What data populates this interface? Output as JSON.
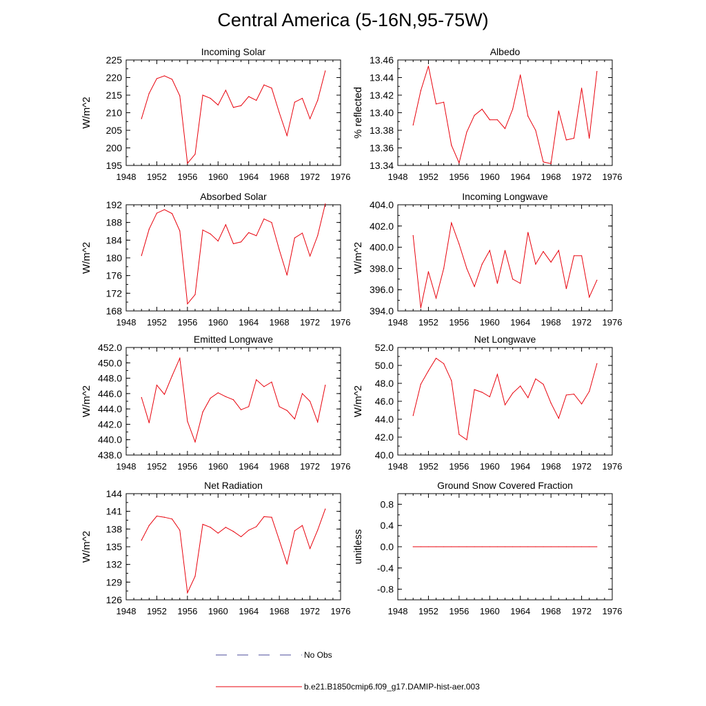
{
  "page": {
    "title": "Central America (5-16N,95-75W)"
  },
  "legend": [
    {
      "label": "No Obs",
      "color": "#4a4a9a",
      "style": "dashed"
    },
    {
      "label": "b.e21.B1850cmip6.f09_g17.DAMIP-hist-aer.003",
      "color": "#e8000b",
      "style": "solid"
    }
  ],
  "chart_data": [
    {
      "type": "line",
      "title": "Incoming Solar",
      "ylabel": "W/m^2",
      "xlim": [
        1948,
        1976
      ],
      "ylim": [
        195,
        225
      ],
      "xticks": [
        1948,
        1952,
        1956,
        1960,
        1964,
        1968,
        1972,
        1976
      ],
      "yticks": [
        195,
        200,
        205,
        210,
        215,
        220,
        225
      ],
      "ytick_labels": [
        "195",
        "200",
        "205",
        "210",
        "215",
        "220",
        "225"
      ],
      "series_color": "#e8000b",
      "x": [
        1950,
        1951,
        1952,
        1953,
        1954,
        1955,
        1956,
        1957,
        1958,
        1959,
        1960,
        1961,
        1962,
        1963,
        1964,
        1965,
        1966,
        1967,
        1968,
        1969,
        1970,
        1971,
        1972,
        1973,
        1974
      ],
      "values": [
        208.3,
        215.5,
        219.7,
        220.5,
        219.5,
        214.8,
        195.6,
        198.2,
        215.0,
        214.1,
        212.2,
        216.4,
        211.5,
        212.0,
        214.6,
        213.5,
        217.9,
        217.0,
        210.0,
        203.5,
        213.0,
        214.1,
        208.3,
        213.5,
        221.9
      ]
    },
    {
      "type": "line",
      "title": "Albedo",
      "ylabel": "% reflected",
      "xlim": [
        1948,
        1976
      ],
      "ylim": [
        13.34,
        13.46
      ],
      "xticks": [
        1948,
        1952,
        1956,
        1960,
        1964,
        1968,
        1972,
        1976
      ],
      "yticks": [
        13.34,
        13.36,
        13.38,
        13.4,
        13.42,
        13.44,
        13.46
      ],
      "ytick_labels": [
        "13.34",
        "13.36",
        "13.38",
        "13.40",
        "13.42",
        "13.44",
        "13.46"
      ],
      "series_color": "#e8000b",
      "x": [
        1950,
        1951,
        1952,
        1953,
        1954,
        1955,
        1956,
        1957,
        1958,
        1959,
        1960,
        1961,
        1962,
        1963,
        1964,
        1965,
        1966,
        1967,
        1968,
        1969,
        1970,
        1971,
        1972,
        1973,
        1974
      ],
      "values": [
        13.386,
        13.425,
        13.453,
        13.41,
        13.412,
        13.363,
        13.343,
        13.378,
        13.397,
        13.404,
        13.392,
        13.392,
        13.382,
        13.404,
        13.443,
        13.396,
        13.38,
        13.344,
        13.342,
        13.402,
        13.369,
        13.371,
        13.428,
        13.371,
        13.447
      ]
    },
    {
      "type": "line",
      "title": "Absorbed Solar",
      "ylabel": "W/m^2",
      "xlim": [
        1948,
        1976
      ],
      "ylim": [
        168,
        192
      ],
      "xticks": [
        1948,
        1952,
        1956,
        1960,
        1964,
        1968,
        1972,
        1976
      ],
      "yticks": [
        168,
        172,
        176,
        180,
        184,
        188,
        192
      ],
      "ytick_labels": [
        "168",
        "172",
        "176",
        "180",
        "184",
        "188",
        "192"
      ],
      "series_color": "#e8000b",
      "x": [
        1950,
        1951,
        1952,
        1953,
        1954,
        1955,
        1956,
        1957,
        1958,
        1959,
        1960,
        1961,
        1962,
        1963,
        1964,
        1965,
        1966,
        1967,
        1968,
        1969,
        1970,
        1971,
        1972,
        1973,
        1974
      ],
      "values": [
        180.5,
        186.5,
        190.1,
        190.9,
        190.0,
        186.1,
        169.6,
        171.7,
        186.3,
        185.4,
        183.8,
        187.5,
        183.2,
        183.6,
        185.7,
        185.0,
        188.8,
        188.0,
        181.8,
        176.1,
        184.5,
        185.6,
        180.4,
        185.0,
        192.2
      ]
    },
    {
      "type": "line",
      "title": "Incoming Longwave",
      "ylabel": "W/m^2",
      "xlim": [
        1948,
        1976
      ],
      "ylim": [
        394,
        404
      ],
      "xticks": [
        1948,
        1952,
        1956,
        1960,
        1964,
        1968,
        1972,
        1976
      ],
      "yticks": [
        394,
        396,
        398,
        400,
        402,
        404
      ],
      "ytick_labels": [
        "394.0",
        "396.0",
        "398.0",
        "400.0",
        "402.0",
        "404.0"
      ],
      "series_color": "#e8000b",
      "x": [
        1950,
        1951,
        1952,
        1953,
        1954,
        1955,
        1956,
        1957,
        1958,
        1959,
        1960,
        1961,
        1962,
        1963,
        1964,
        1965,
        1966,
        1967,
        1968,
        1969,
        1970,
        1971,
        1972,
        1973,
        1974
      ],
      "values": [
        401.1,
        394.3,
        397.7,
        395.2,
        398.0,
        402.3,
        400.3,
        398.0,
        396.3,
        398.4,
        399.7,
        396.6,
        399.7,
        397.0,
        396.6,
        401.4,
        398.4,
        399.6,
        398.6,
        399.7,
        396.1,
        399.2,
        399.2,
        395.3,
        396.9
      ]
    },
    {
      "type": "line",
      "title": "Emitted Longwave",
      "ylabel": "W/m^2",
      "xlim": [
        1948,
        1976
      ],
      "ylim": [
        438,
        452
      ],
      "xticks": [
        1948,
        1952,
        1956,
        1960,
        1964,
        1968,
        1972,
        1976
      ],
      "yticks": [
        438,
        440,
        442,
        444,
        446,
        448,
        450,
        452
      ],
      "ytick_labels": [
        "438.0",
        "440.0",
        "442.0",
        "444.0",
        "446.0",
        "448.0",
        "450.0",
        "452.0"
      ],
      "series_color": "#e8000b",
      "x": [
        1950,
        1951,
        1952,
        1953,
        1954,
        1955,
        1956,
        1957,
        1958,
        1959,
        1960,
        1961,
        1962,
        1963,
        1964,
        1965,
        1966,
        1967,
        1968,
        1969,
        1970,
        1971,
        1972,
        1973,
        1974
      ],
      "values": [
        445.5,
        442.2,
        447.1,
        445.9,
        448.3,
        450.6,
        442.4,
        439.7,
        443.6,
        445.4,
        446.1,
        445.6,
        445.2,
        443.9,
        444.3,
        447.8,
        446.9,
        447.5,
        444.3,
        443.8,
        442.7,
        446.0,
        445.0,
        442.3,
        447.1
      ]
    },
    {
      "type": "line",
      "title": "Net Longwave",
      "ylabel": "W/m^2",
      "xlim": [
        1948,
        1976
      ],
      "ylim": [
        40,
        52
      ],
      "xticks": [
        1948,
        1952,
        1956,
        1960,
        1964,
        1968,
        1972,
        1976
      ],
      "yticks": [
        40,
        42,
        44,
        46,
        48,
        50,
        52
      ],
      "ytick_labels": [
        "40.0",
        "42.0",
        "44.0",
        "46.0",
        "48.0",
        "50.0",
        "52.0"
      ],
      "series_color": "#e8000b",
      "x": [
        1950,
        1951,
        1952,
        1953,
        1954,
        1955,
        1956,
        1957,
        1958,
        1959,
        1960,
        1961,
        1962,
        1963,
        1964,
        1965,
        1966,
        1967,
        1968,
        1969,
        1970,
        1971,
        1972,
        1973,
        1974
      ],
      "values": [
        44.4,
        47.9,
        49.4,
        50.8,
        50.2,
        48.3,
        42.3,
        41.7,
        47.3,
        47.0,
        46.5,
        49.0,
        45.6,
        46.9,
        47.7,
        46.4,
        48.5,
        47.9,
        45.8,
        44.1,
        46.7,
        46.8,
        45.7,
        47.1,
        50.2
      ]
    },
    {
      "type": "line",
      "title": "Net Radiation",
      "ylabel": "W/m^2",
      "xlim": [
        1948,
        1976
      ],
      "ylim": [
        126,
        144
      ],
      "xticks": [
        1948,
        1952,
        1956,
        1960,
        1964,
        1968,
        1972,
        1976
      ],
      "yticks": [
        126,
        129,
        132,
        135,
        138,
        141,
        144
      ],
      "ytick_labels": [
        "126",
        "129",
        "132",
        "135",
        "138",
        "141",
        "144"
      ],
      "series_color": "#e8000b",
      "x": [
        1950,
        1951,
        1952,
        1953,
        1954,
        1955,
        1956,
        1957,
        1958,
        1959,
        1960,
        1961,
        1962,
        1963,
        1964,
        1965,
        1966,
        1967,
        1968,
        1969,
        1970,
        1971,
        1972,
        1973,
        1974
      ],
      "values": [
        136.1,
        138.6,
        140.2,
        140.0,
        139.7,
        137.8,
        127.2,
        130.0,
        138.8,
        138.3,
        137.3,
        138.3,
        137.6,
        136.7,
        137.8,
        138.4,
        140.1,
        140.0,
        136.1,
        132.1,
        137.7,
        138.6,
        134.7,
        137.8,
        141.4
      ]
    },
    {
      "type": "line",
      "title": "Ground Snow Covered Fraction",
      "ylabel": "unitless",
      "xlim": [
        1948,
        1976
      ],
      "ylim": [
        -1.0,
        1.0
      ],
      "xticks": [
        1948,
        1952,
        1956,
        1960,
        1964,
        1968,
        1972,
        1976
      ],
      "yticks": [
        -0.8,
        -0.4,
        0.0,
        0.4,
        0.8
      ],
      "ytick_labels": [
        "-0.8",
        "-0.4",
        "0.0",
        "0.4",
        "0.8"
      ],
      "series_color": "#e8000b",
      "x": [
        1950,
        1951,
        1952,
        1953,
        1954,
        1955,
        1956,
        1957,
        1958,
        1959,
        1960,
        1961,
        1962,
        1963,
        1964,
        1965,
        1966,
        1967,
        1968,
        1969,
        1970,
        1971,
        1972,
        1973,
        1974
      ],
      "values": [
        0,
        0,
        0,
        0,
        0,
        0,
        0,
        0,
        0,
        0,
        0,
        0,
        0,
        0,
        0,
        0,
        0,
        0,
        0,
        0,
        0,
        0,
        0,
        0,
        0
      ]
    }
  ]
}
